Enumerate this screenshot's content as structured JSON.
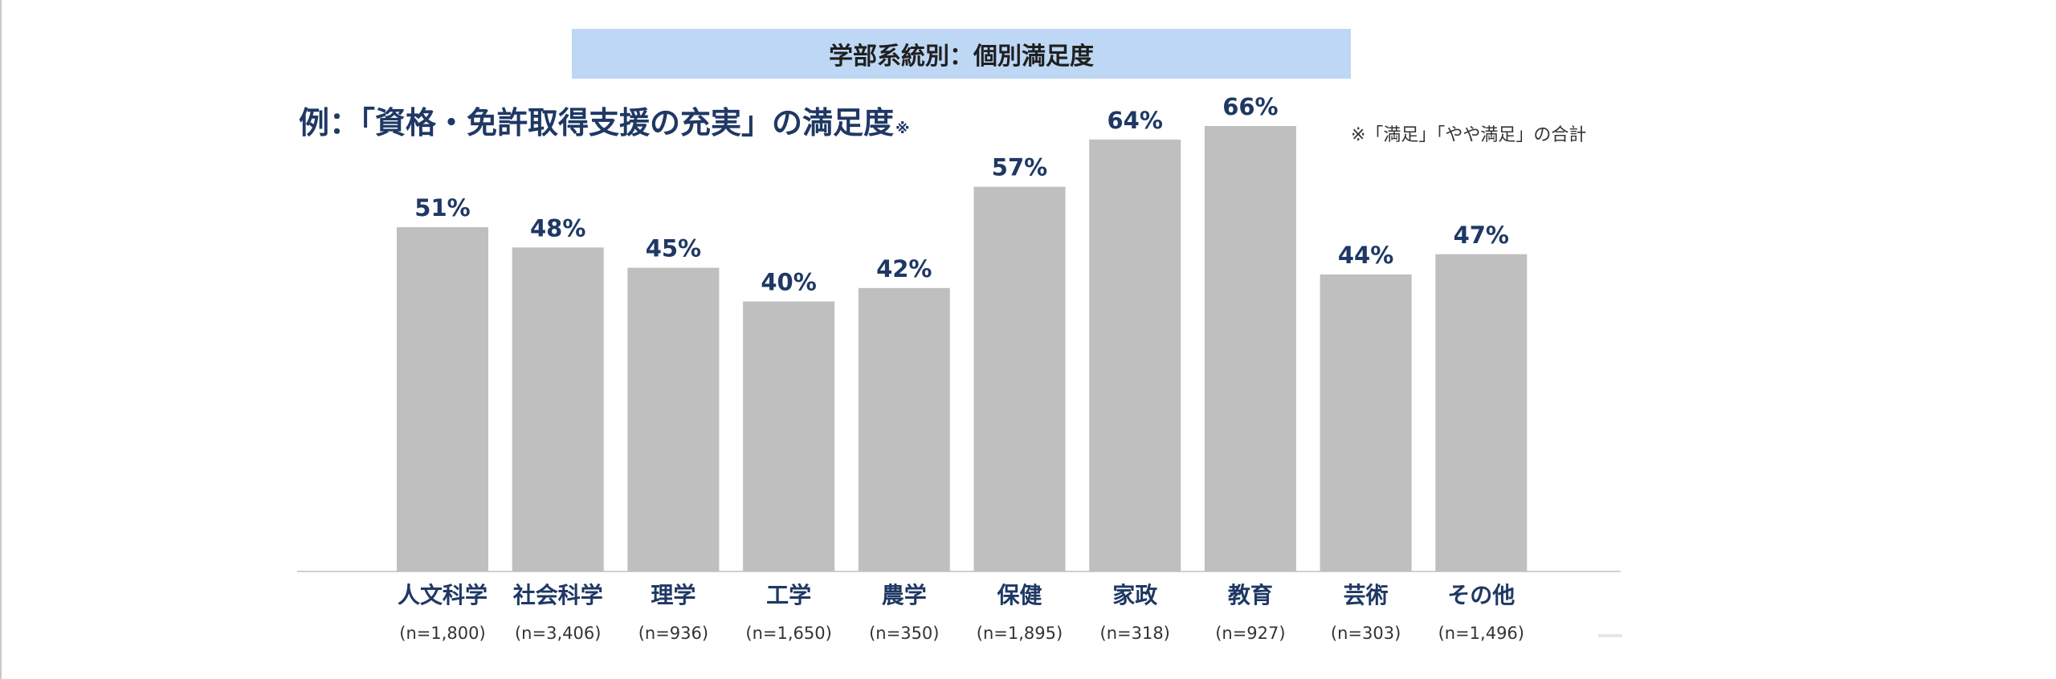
{
  "header": {
    "title": "学部系統別：個別満足度"
  },
  "chart_title": "例：「資格・免許取得支援の充実」の満足度",
  "chart_title_mark": "※",
  "note": "※「満足」「やや満足」の合計",
  "colors": {
    "bar": "#bfbfbf",
    "value_label": "#1f3864",
    "header_band": "#bdd7f5",
    "axis": "#d0d0d0"
  },
  "chart_data": {
    "type": "bar",
    "categories": [
      "人文科学",
      "社会科学",
      "理学",
      "工学",
      "農学",
      "保健",
      "家政",
      "教育",
      "芸術",
      "その他"
    ],
    "sample_sizes": [
      "(n=1,800)",
      "(n=3,406)",
      "(n=936)",
      "(n=1,650)",
      "(n=350)",
      "(n=1,895)",
      "(n=318)",
      "(n=927)",
      "(n=303)",
      "(n=1,496)"
    ],
    "values": [
      51,
      48,
      45,
      40,
      42,
      57,
      64,
      66,
      44,
      47
    ],
    "value_labels": [
      "51%",
      "48%",
      "45%",
      "40%",
      "42%",
      "57%",
      "64%",
      "66%",
      "44%",
      "47%"
    ],
    "ylim": [
      0,
      66
    ],
    "grid": false,
    "legend": "none"
  }
}
